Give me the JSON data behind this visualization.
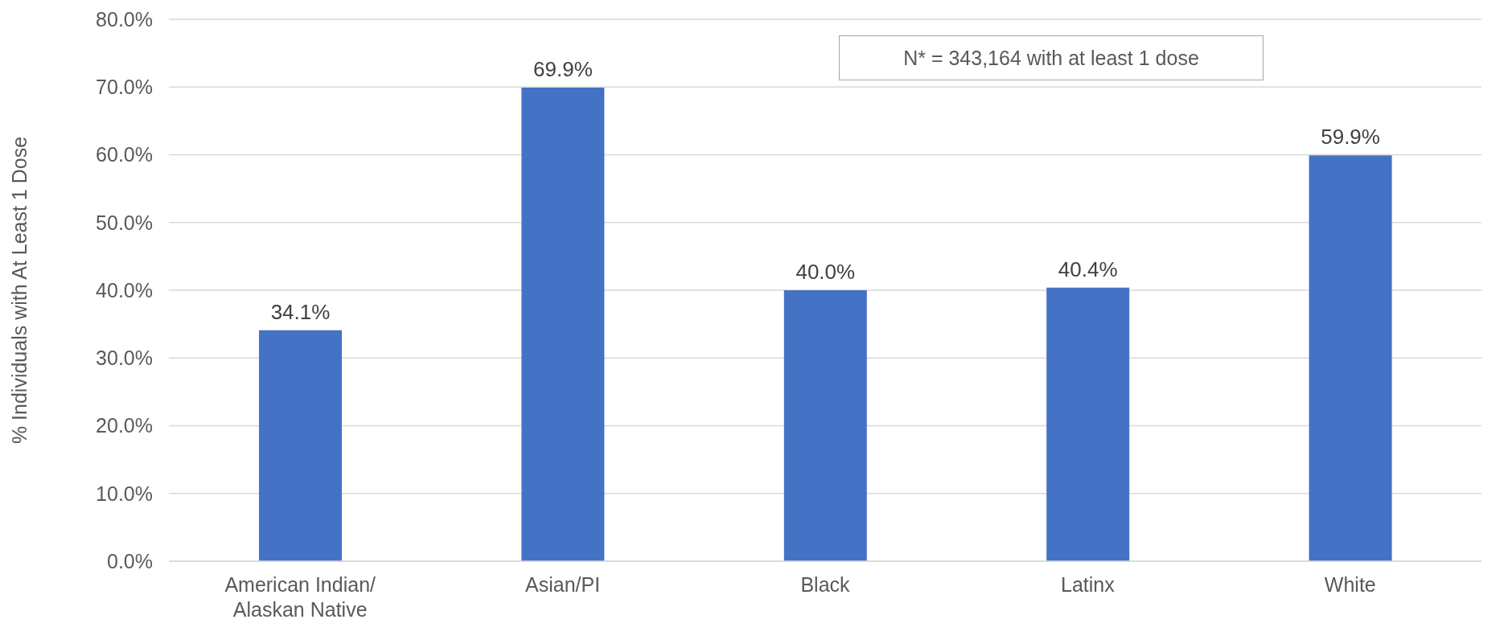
{
  "chart_data": {
    "type": "bar",
    "ylabel": "% Individuals with At Least 1 Dose",
    "categories": [
      "American Indian/ Alaskan Native",
      "Asian/PI",
      "Black",
      "Latinx",
      "White"
    ],
    "values": [
      34.1,
      69.9,
      40.0,
      40.4,
      59.9
    ],
    "color": "#4472c4",
    "value_labels": [
      "34.1%",
      "69.9%",
      "40.0%",
      "40.4%",
      "59.9%"
    ],
    "ylim": [
      0,
      80
    ],
    "yticks": [
      {
        "value": 0,
        "label": "0.0%"
      },
      {
        "value": 10,
        "label": "10.0%"
      },
      {
        "value": 20,
        "label": "20.0%"
      },
      {
        "value": 30,
        "label": "30.0%"
      },
      {
        "value": 40,
        "label": "40.0%"
      },
      {
        "value": 50,
        "label": "50.0%"
      },
      {
        "value": 60,
        "label": "60.0%"
      },
      {
        "value": 70,
        "label": "70.0%"
      },
      {
        "value": 80,
        "label": "80.0%"
      }
    ],
    "grid": "y",
    "annotations": [
      "N* = 343,164 with at least 1 dose"
    ]
  }
}
